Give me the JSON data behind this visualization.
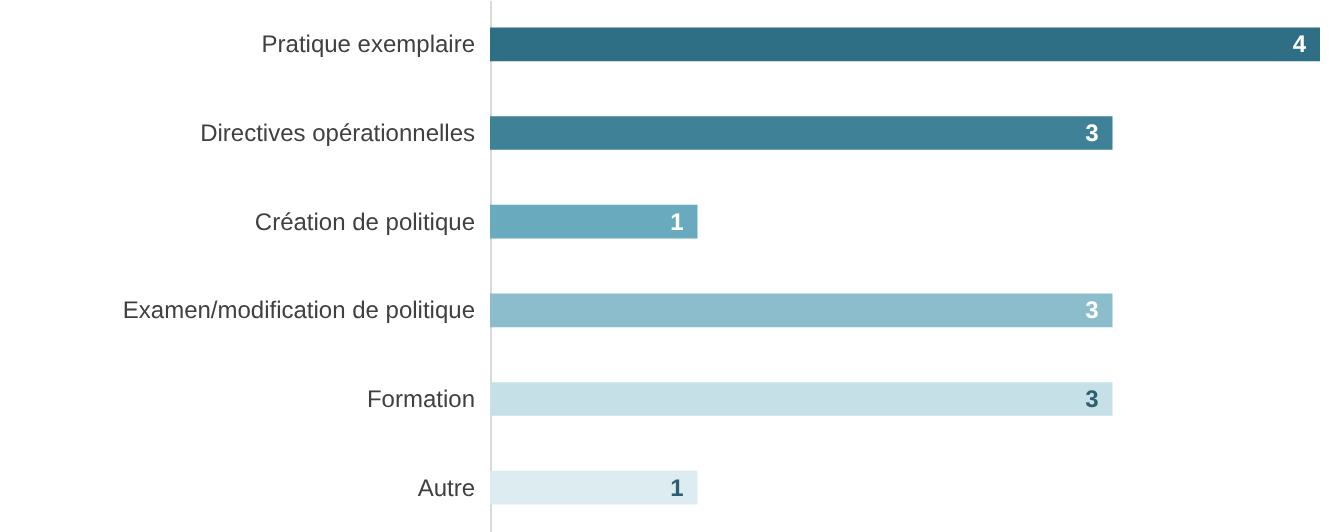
{
  "chart_data": {
    "type": "bar",
    "orientation": "horizontal",
    "categories": [
      "Pratique exemplaire",
      "Directives opérationnelles",
      "Création de politique",
      "Examen/modification de politique",
      "Formation",
      "Autre"
    ],
    "values": [
      4,
      3,
      1,
      3,
      3,
      1
    ],
    "colors": [
      "#2e6f86",
      "#3f8197",
      "#6aaabf",
      "#8bbdcd",
      "#c6e0e8",
      "#dcecf1"
    ],
    "data_labels": true
  }
}
